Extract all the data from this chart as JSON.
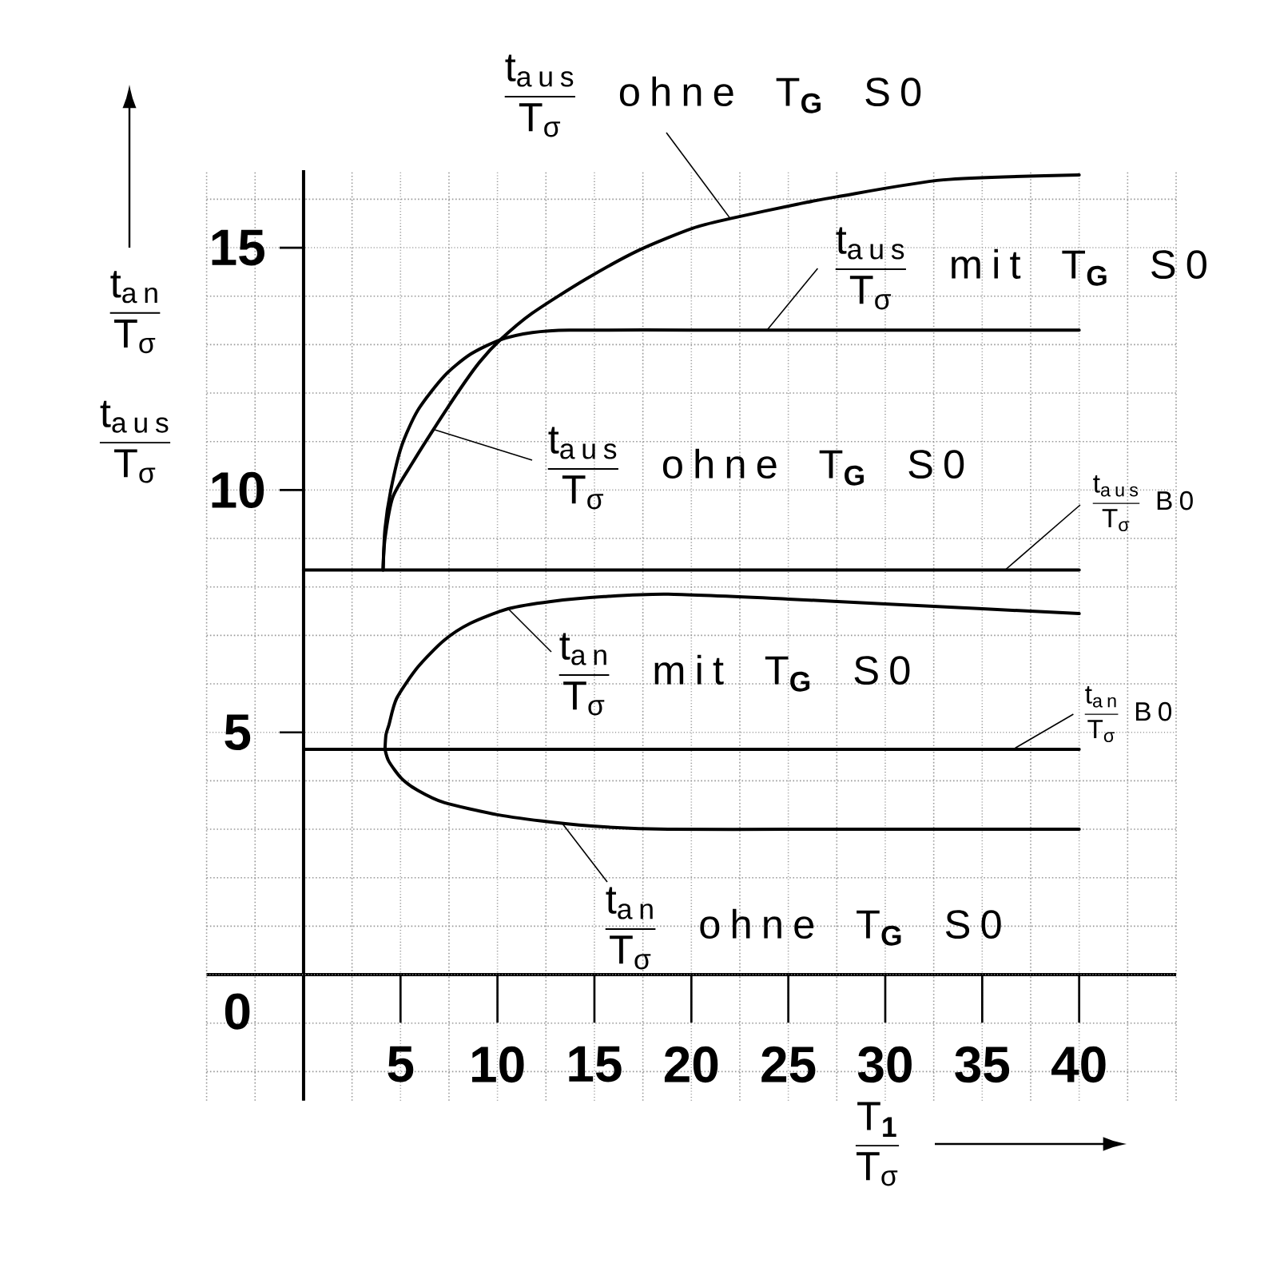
{
  "chart_data": {
    "type": "line",
    "xlabel": "\\dfrac{\\text{T}_{\\textbf{1}}}{\\text{T}_{\\text{σ}}}",
    "ylabel": "\\begin{matrix}\\dfrac{\\text{t}_{\\text{an}}}{\\text{T}_{\\text{σ}}}\\\\\\dfrac{\\text{t}_{\\text{aus}}}{\\text{T}_{\\text{σ}}}\\end{matrix}",
    "xlim": [
      -5,
      45
    ],
    "ylim": [
      -2.6,
      16.6
    ],
    "xticks": [
      5,
      10,
      15,
      20,
      25,
      30,
      35,
      40
    ],
    "yticks": [
      0,
      5,
      10,
      15
    ],
    "grid": true,
    "series": [
      {
        "name": "\\dfrac{\\text{t}_{\\text{aus}}}{\\text{T}_{\\text{σ}}}\\text{ ohne T}_{\\textbf{G}}\\text{ S0}",
        "color": "#000000",
        "x": [
          4.1,
          4.2,
          4.6,
          5.6,
          6.7,
          8.1,
          9.1,
          10.15,
          11.8,
          14.55,
          17.3,
          20.05,
          22,
          25.5,
          27.5,
          33,
          40
        ],
        "values": [
          8.35,
          9.0,
          9.85,
          10.55,
          11.25,
          12.1,
          12.65,
          13.1,
          13.65,
          14.35,
          14.95,
          15.4,
          15.6,
          15.9,
          16.05,
          16.4,
          16.5
        ]
      },
      {
        "name": "\\dfrac{\\text{t}_{\\text{aus}}}{\\text{T}_{\\text{σ}}}\\text{ mit T}_{\\textbf{G}}\\text{ S0}",
        "color": "#000000",
        "x": [
          4.1,
          4.2,
          4.5,
          5.05,
          5.9,
          7.25,
          8.6,
          10.15,
          11.8,
          13.7,
          20,
          30,
          40
        ],
        "values": [
          8.35,
          9.2,
          10.0,
          10.9,
          11.65,
          12.35,
          12.8,
          13.1,
          13.25,
          13.3,
          13.3,
          13.3,
          13.3
        ]
      },
      {
        "name": "\\dfrac{\\text{t}_{\\text{aus}}}{\\text{T}_{\\text{σ}}}\\text{ B0}",
        "color": "#000000",
        "x": [
          0,
          40
        ],
        "values": [
          8.35,
          8.35
        ]
      },
      {
        "name": "\\dfrac{\\text{t}_{\\text{an}}}{\\text{T}_{\\text{σ}}}\\text{ mit T}_{\\textbf{G}}\\text{ S0}",
        "color": "#000000",
        "x": [
          4.2,
          4.25,
          4.4,
          4.8,
          5.9,
          7.25,
          8.6,
          10.55,
          12.75,
          15.5,
          18.8,
          25,
          30,
          35,
          40
        ],
        "values": [
          4.65,
          4.95,
          5.15,
          5.7,
          6.35,
          6.9,
          7.25,
          7.55,
          7.7,
          7.8,
          7.85,
          7.75,
          7.65,
          7.55,
          7.45
        ]
      },
      {
        "name": "\\dfrac{\\text{t}_{\\text{an}}}{\\text{T}_{\\text{σ}}}\\text{ B0}",
        "color": "#000000",
        "x": [
          0,
          40
        ],
        "values": [
          4.65,
          4.65
        ]
      },
      {
        "name": "\\dfrac{\\text{t}_{\\text{an}}}{\\text{T}_{\\text{σ}}}\\text{ ohne T}_{\\textbf{G}}\\text{ S0}",
        "color": "#000000",
        "x": [
          4.2,
          4.4,
          5.05,
          5.9,
          7.25,
          10,
          12.75,
          15.5,
          18.8,
          25,
          32,
          40
        ],
        "values": [
          4.65,
          4.4,
          4.05,
          3.8,
          3.55,
          3.3,
          3.15,
          3.05,
          3.0,
          3.0,
          3.0,
          3.0
        ]
      }
    ],
    "annotations": [
      {
        "text": "\\dfrac{\\text{t}_{\\text{aus}}}{\\text{T}_{\\text{σ}}}\\text{ ohne T}_{\\textbf{G}}\\text{ S0}",
        "x": 6.7,
        "y": 11.25
      }
    ]
  }
}
